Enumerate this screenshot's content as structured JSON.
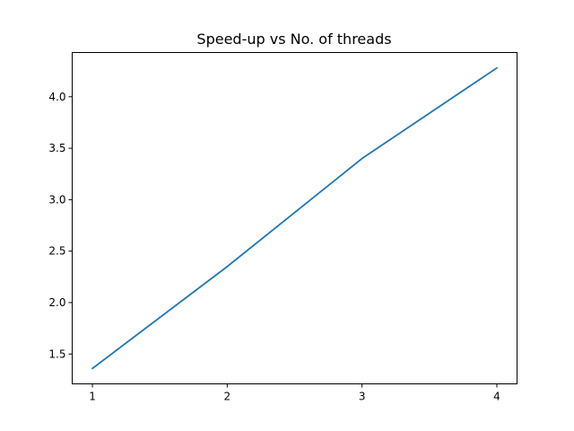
{
  "chart_data": {
    "type": "line",
    "title": "Speed-up vs No. of threads",
    "xlabel": "",
    "ylabel": "",
    "x": [
      1,
      2,
      3,
      4
    ],
    "series": [
      {
        "values": [
          1.36,
          2.35,
          3.4,
          4.28
        ],
        "color": "#1f77b4"
      }
    ],
    "xlim": [
      0.85,
      4.15
    ],
    "ylim": [
      1.21,
      4.43
    ],
    "xticks": [
      1,
      2,
      3,
      4
    ],
    "xtick_labels": [
      "1",
      "2",
      "3",
      "4"
    ],
    "yticks": [
      1.5,
      2.0,
      2.5,
      3.0,
      3.5,
      4.0
    ],
    "ytick_labels": [
      "1.5",
      "2.0",
      "2.5",
      "3.0",
      "3.5",
      "4.0"
    ],
    "grid": false,
    "legend": "none"
  }
}
